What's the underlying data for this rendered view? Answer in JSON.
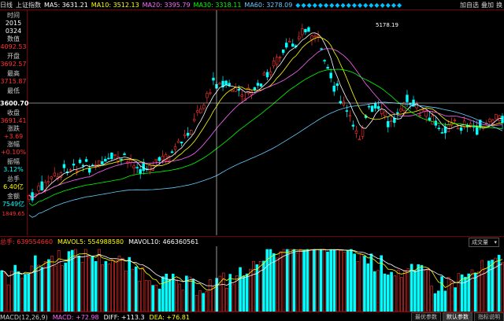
{
  "period_label": "日线",
  "index_name": "上证指数",
  "ma_legend": [
    {
      "label": "MA5: 3631.21",
      "color": "#ffffff"
    },
    {
      "label": "MA10: 3512.13",
      "color": "#ffff00"
    },
    {
      "label": "MA20: 3395.79",
      "color": "#ff66ff"
    },
    {
      "label": "MA30: 3318.11",
      "color": "#00ff00"
    },
    {
      "label": "MA60: 3278.09",
      "color": "#66ccff"
    }
  ],
  "toolbar": {
    "add_self": "加自选",
    "overlay": "叠加",
    "switch": "换"
  },
  "sidebar": {
    "time_label": "时间",
    "date_year": "2015",
    "date_md": "0324",
    "value_label": "数值",
    "value": "4092.53",
    "open_label": "开盘",
    "open": "3692.57",
    "high_label": "最高",
    "high": "3715.87",
    "low_label": "最低",
    "low_cross": "3600.70",
    "close_label": "收盘",
    "close": "3691.41",
    "change_label": "涨跌",
    "change": "+3.69",
    "pct_label": "涨幅",
    "pct": "+0.10%",
    "amp_label": "振幅",
    "amp": "3.12%",
    "vol_label": "总手",
    "vol": "6.40亿",
    "amt_label": "金额",
    "amt": "7549亿",
    "bottom_price": "1849.65"
  },
  "price_annotation": "5178.19",
  "volume": {
    "label": "总手: 639554660",
    "mavol5": "MAVOL5: 554988580",
    "mavol10": "MAVOL10: 466360561",
    "selector": "成交量"
  },
  "macd": {
    "label": "MACD(12,26,9)",
    "value": "MACD: +72.98",
    "diff": "DIFF: +113.3",
    "dea": "DEA: +76.81",
    "buttons": [
      "最优参数",
      "默认参数",
      "指标说明"
    ]
  },
  "colors": {
    "up": "#ff3030",
    "down": "#00ffff",
    "ma5": "#ffffff",
    "ma10": "#ffff00",
    "ma20": "#ff66ff",
    "ma30": "#00ff00",
    "ma60": "#66ccff"
  }
}
